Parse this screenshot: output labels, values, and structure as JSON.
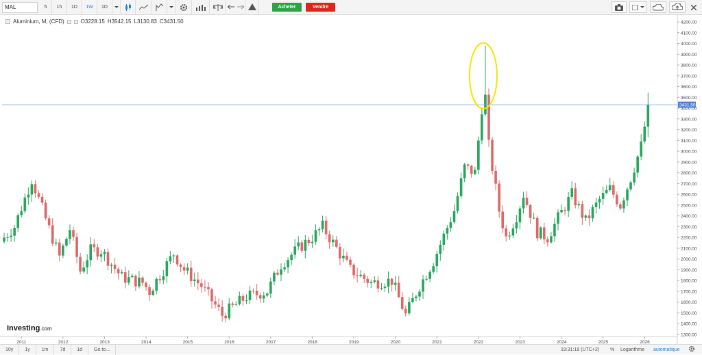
{
  "toolbar": {
    "symbol": "MAL",
    "intervals": [
      "5",
      "1h",
      "1D",
      "1W",
      "1D"
    ],
    "active_interval_index": 3,
    "buy_label": "Acheter",
    "sell_label": "Vendre",
    "buy_color": "#2ca344",
    "sell_color": "#e2231a"
  },
  "legend": {
    "title": "Aluminium, M, (CFD)",
    "open": "O3228.15",
    "high": "H3542.15",
    "low": "L3130.83",
    "close": "C3431.50"
  },
  "price_axis": {
    "ticks": [
      "4200.00",
      "4100.00",
      "4000.00",
      "3900.00",
      "3800.00",
      "3700.00",
      "3600.00",
      "3500.00",
      "3400.00",
      "3300.00",
      "3200.00",
      "3100.00",
      "3000.00",
      "2900.00",
      "2800.00",
      "2700.00",
      "2600.00",
      "2500.00",
      "2400.00",
      "2300.00",
      "2200.00",
      "2100.00",
      "2000.00",
      "1900.00",
      "1800.00",
      "1700.00",
      "1600.00",
      "1500.00",
      "1400.00",
      "1300.00"
    ],
    "last_price_label": "3431.50"
  },
  "time_axis": {
    "ticks": [
      "2011",
      "2012",
      "2013",
      "2014",
      "2015",
      "2016",
      "2017",
      "2018",
      "2019",
      "2020",
      "2021",
      "2022",
      "2023",
      "2024",
      "2025",
      "2026"
    ]
  },
  "logo": {
    "main": "Investing",
    "suffix": ".com"
  },
  "bottombar": {
    "ranges": [
      "10y",
      "1y",
      "1m",
      "7d",
      "1d",
      "Go to..."
    ],
    "clock": "19:31:19 (UTC+2)",
    "percent": "%",
    "log": "Logarithme",
    "auto": "automatique"
  },
  "colors": {
    "up": "#26a65b",
    "down": "#e06666",
    "last_price_line": "#6f9fd8",
    "highlight_ellipse": "#f5e400"
  },
  "chart_data": {
    "type": "candlestick",
    "interval": "monthly",
    "ylim": [
      1250,
      4250
    ],
    "anchors": [
      {
        "date": "2010-08",
        "close": 2200
      },
      {
        "date": "2010-11",
        "close": 2300
      },
      {
        "date": "2011-04",
        "close": 2740
      },
      {
        "date": "2011-09",
        "close": 2280
      },
      {
        "date": "2011-12",
        "close": 2020
      },
      {
        "date": "2012-03",
        "close": 2280
      },
      {
        "date": "2012-06",
        "close": 1890
      },
      {
        "date": "2012-09",
        "close": 2080
      },
      {
        "date": "2012-12",
        "close": 2080
      },
      {
        "date": "2013-06",
        "close": 1830
      },
      {
        "date": "2013-12",
        "close": 1780
      },
      {
        "date": "2014-02",
        "close": 1700
      },
      {
        "date": "2014-09",
        "close": 2050
      },
      {
        "date": "2014-12",
        "close": 1900
      },
      {
        "date": "2015-05",
        "close": 1750
      },
      {
        "date": "2015-11",
        "close": 1480
      },
      {
        "date": "2016-06",
        "close": 1650
      },
      {
        "date": "2016-12",
        "close": 1700
      },
      {
        "date": "2017-04",
        "close": 1950
      },
      {
        "date": "2017-09",
        "close": 2100
      },
      {
        "date": "2018-01",
        "close": 2200
      },
      {
        "date": "2018-04",
        "close": 2300
      },
      {
        "date": "2018-09",
        "close": 2050
      },
      {
        "date": "2018-12",
        "close": 1900
      },
      {
        "date": "2019-06",
        "close": 1780
      },
      {
        "date": "2019-12",
        "close": 1800
      },
      {
        "date": "2020-04",
        "close": 1480
      },
      {
        "date": "2020-08",
        "close": 1750
      },
      {
        "date": "2020-12",
        "close": 1980
      },
      {
        "date": "2021-06",
        "close": 2450
      },
      {
        "date": "2021-09",
        "close": 2850
      },
      {
        "date": "2021-12",
        "close": 2800
      },
      {
        "date": "2022-02",
        "close": 3400
      },
      {
        "date": "2022-03",
        "close": 3500
      },
      {
        "date": "2022-04",
        "close": 3050
      },
      {
        "date": "2022-07",
        "close": 2450
      },
      {
        "date": "2022-09",
        "close": 2200
      },
      {
        "date": "2022-12",
        "close": 2400
      },
      {
        "date": "2023-02",
        "close": 2600
      },
      {
        "date": "2023-06",
        "close": 2250
      },
      {
        "date": "2023-09",
        "close": 2200
      },
      {
        "date": "2023-12",
        "close": 2380
      },
      {
        "date": "2024-04",
        "close": 2600
      },
      {
        "date": "2024-08",
        "close": 2350
      },
      {
        "date": "2024-12",
        "close": 2550
      },
      {
        "date": "2025-03",
        "close": 2650
      },
      {
        "date": "2025-06",
        "close": 2500
      },
      {
        "date": "2025-09",
        "close": 2750
      },
      {
        "date": "2025-12",
        "close": 3050
      },
      {
        "date": "2026-01",
        "close": 3228
      },
      {
        "date": "2026-02",
        "close": 3431
      }
    ],
    "notable": {
      "spike_date": "2022-03",
      "spike_high": 3980,
      "last_bar": {
        "date": "2026-02",
        "open": 3228.15,
        "high": 3542.15,
        "low": 3130.83,
        "close": 3431.5
      }
    },
    "last_price": 3431.5,
    "grid": false,
    "log_scale": false
  }
}
